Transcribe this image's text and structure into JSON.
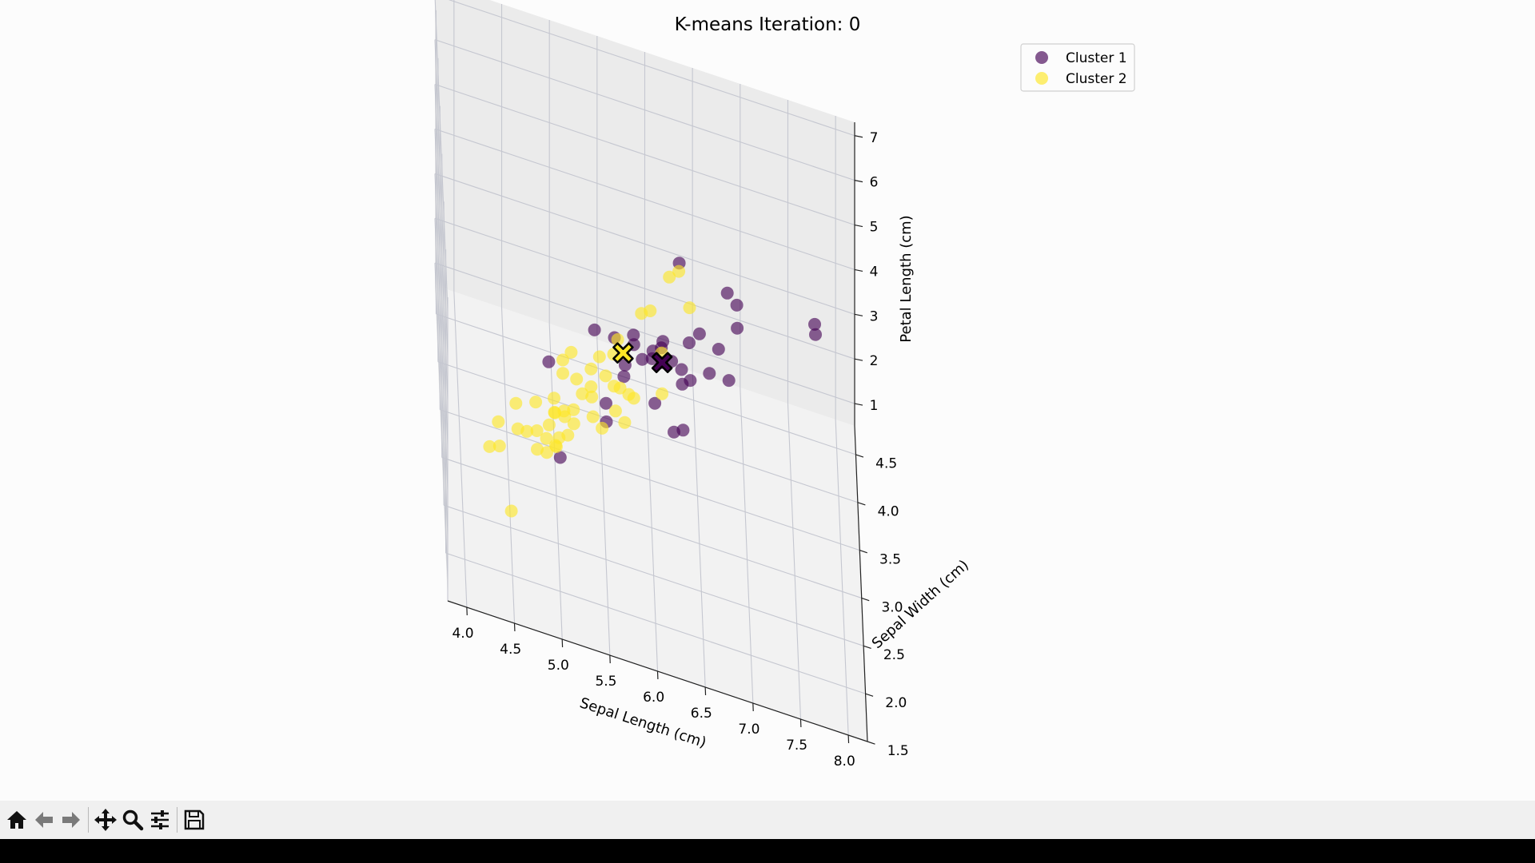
{
  "window": {
    "toolbar_items": [
      {
        "icon": "home-icon"
      },
      {
        "icon": "back-arrow-icon"
      },
      {
        "icon": "forward-arrow-icon"
      },
      {
        "icon": "pan-move-icon"
      },
      {
        "icon": "zoom-magnifier-icon"
      },
      {
        "icon": "configure-subplots-icon"
      },
      {
        "icon": "save-floppy-icon"
      }
    ]
  },
  "chart_data": {
    "type": "scatter",
    "projection": "3d",
    "title": "K-means Iteration: 0",
    "xlabel": "Sepal Length (cm)",
    "ylabel": "Sepal Width (cm)",
    "zlabel": "Petal Length (cm)",
    "xlim": [
      3.8,
      8.2
    ],
    "ylim": [
      1.5,
      4.8
    ],
    "zlim": [
      0.5,
      7.3
    ],
    "x_ticks": [
      "4.0",
      "4.5",
      "5.0",
      "5.5",
      "6.0",
      "6.5",
      "7.0",
      "7.5",
      "8.0"
    ],
    "y_ticks": [
      "1.5",
      "2.0",
      "2.5",
      "3.0",
      "3.5",
      "4.0",
      "4.5"
    ],
    "z_ticks": [
      "1",
      "2",
      "3",
      "4",
      "5",
      "6",
      "7"
    ],
    "grid": true,
    "legend": {
      "position": "top-right"
    },
    "colors": {
      "cluster1": "#440154",
      "cluster2": "#fde725"
    },
    "series": [
      {
        "name": "Cluster 1",
        "color": "#440154",
        "points": [
          [
            7.7,
            2.8,
            6.7
          ],
          [
            7.7,
            2.6,
            6.9
          ],
          [
            6.8,
            2.8,
            4.8
          ],
          [
            6.9,
            3.1,
            5.4
          ],
          [
            6.7,
            3.0,
            5.0
          ],
          [
            6.3,
            2.5,
            5.0
          ],
          [
            6.4,
            2.9,
            4.3
          ],
          [
            6.6,
            2.9,
            4.6
          ],
          [
            6.8,
            3.2,
            5.9
          ],
          [
            6.2,
            2.8,
            4.8
          ],
          [
            6.0,
            2.7,
            5.1
          ],
          [
            6.1,
            2.8,
            4.7
          ],
          [
            6.5,
            3.0,
            5.2
          ],
          [
            6.3,
            3.3,
            6.0
          ],
          [
            6.9,
            3.2,
            5.7
          ],
          [
            6.4,
            3.2,
            4.5
          ],
          [
            5.8,
            2.7,
            5.1
          ],
          [
            5.9,
            3.0,
            4.2
          ],
          [
            6.0,
            2.2,
            5.0
          ],
          [
            5.7,
            2.8,
            4.1
          ],
          [
            5.6,
            2.8,
            4.9
          ],
          [
            6.0,
            2.9,
            4.5
          ],
          [
            6.1,
            2.6,
            5.6
          ],
          [
            6.3,
            2.3,
            4.4
          ],
          [
            5.5,
            2.5,
            4.0
          ],
          [
            5.4,
            3.0,
            4.5
          ],
          [
            5.5,
            2.4,
            3.8
          ],
          [
            6.2,
            2.2,
            4.5
          ],
          [
            6.3,
            2.7,
            4.9
          ],
          [
            5.0,
            2.0,
            3.5
          ],
          [
            4.9,
            2.5,
            4.5
          ],
          [
            5.7,
            2.5,
            5.0
          ],
          [
            5.8,
            2.8,
            5.1
          ],
          [
            6.1,
            3.0,
            4.6
          ]
        ]
      },
      {
        "name": "Cluster 2",
        "color": "#fde725",
        "points": [
          [
            4.3,
            3.0,
            1.1
          ],
          [
            4.4,
            2.9,
            1.4
          ],
          [
            4.6,
            3.1,
            1.5
          ],
          [
            4.8,
            3.4,
            1.6
          ],
          [
            5.0,
            3.6,
            1.4
          ],
          [
            4.9,
            3.1,
            1.5
          ],
          [
            5.1,
            3.5,
            1.4
          ],
          [
            5.4,
            3.9,
            1.7
          ],
          [
            5.4,
            3.7,
            1.5
          ],
          [
            5.7,
            4.4,
            1.5
          ],
          [
            5.2,
            4.1,
            1.5
          ],
          [
            5.8,
            4.0,
            1.2
          ],
          [
            5.1,
            3.8,
            1.6
          ],
          [
            5.0,
            3.4,
            1.5
          ],
          [
            4.7,
            3.2,
            1.3
          ],
          [
            5.3,
            3.7,
            1.5
          ],
          [
            5.5,
            4.2,
            1.4
          ],
          [
            4.8,
            3.0,
            1.4
          ],
          [
            5.0,
            3.0,
            1.6
          ],
          [
            5.2,
            3.4,
            1.4
          ],
          [
            4.6,
            3.6,
            1.0
          ],
          [
            4.5,
            2.3,
            1.3
          ],
          [
            5.1,
            3.3,
            1.7
          ],
          [
            4.8,
            3.1,
            1.6
          ],
          [
            5.0,
            3.5,
            1.3
          ],
          [
            5.4,
            3.4,
            1.7
          ],
          [
            5.2,
            3.5,
            1.5
          ],
          [
            4.4,
            3.2,
            1.3
          ],
          [
            5.1,
            3.8,
            1.9
          ],
          [
            5.0,
            2.3,
            3.3
          ],
          [
            5.1,
            2.5,
            3.0
          ],
          [
            5.7,
            2.6,
            3.5
          ],
          [
            5.6,
            2.9,
            3.6
          ],
          [
            5.6,
            3.0,
            4.1
          ],
          [
            5.7,
            3.8,
            1.7
          ],
          [
            5.5,
            3.5,
            1.3
          ],
          [
            5.8,
            2.7,
            3.9
          ],
          [
            6.0,
            3.4,
            4.5
          ],
          [
            6.1,
            2.8,
            4.0
          ],
          [
            5.5,
            2.6,
            4.4
          ],
          [
            5.7,
            3.0,
            4.2
          ],
          [
            6.2,
            3.4,
            5.4
          ],
          [
            5.2,
            2.7,
            3.9
          ],
          [
            4.9,
            2.4,
            3.3
          ],
          [
            5.6,
            2.5,
            3.9
          ],
          [
            5.9,
            3.2,
            4.8
          ],
          [
            6.1,
            2.9,
            4.7
          ],
          [
            6.3,
            3.4,
            5.6
          ],
          [
            6.4,
            3.1,
            5.5
          ],
          [
            5.4,
            3.9,
            1.3
          ],
          [
            4.9,
            3.0,
            1.4
          ],
          [
            5.0,
            3.2,
            1.2
          ]
        ]
      }
    ],
    "centroids": [
      {
        "name": "Cluster 1 centroid",
        "color": "#440154",
        "x": 6.1,
        "y": 2.8,
        "z": 4.7
      },
      {
        "name": "Cluster 2 centroid",
        "color": "#fde725",
        "x": 5.7,
        "y": 3.0,
        "z": 4.2
      }
    ]
  }
}
